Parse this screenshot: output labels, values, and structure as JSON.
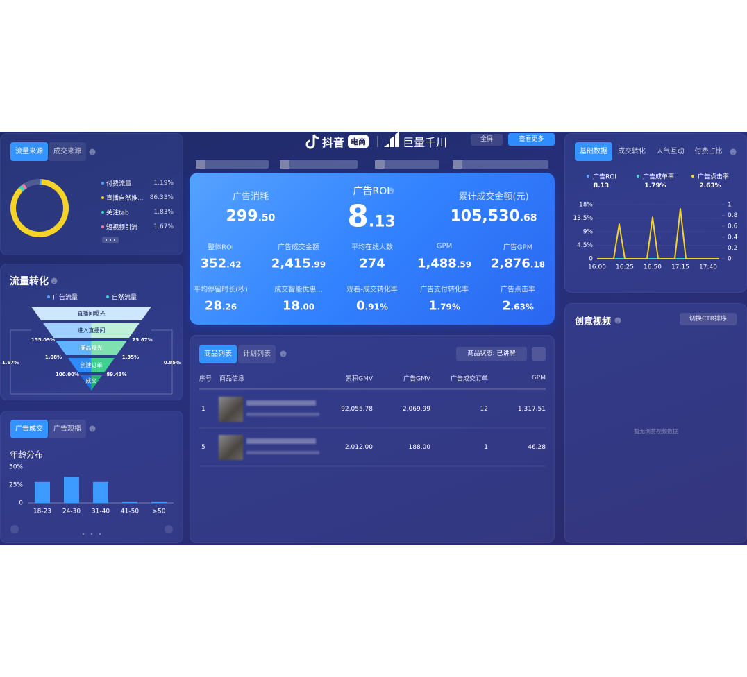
{
  "header": {
    "brand": "抖音",
    "brand_badge": "电商",
    "partner": "巨量千川",
    "fullscreen_button": "全屏",
    "more_button": "查看更多"
  },
  "traffic_source": {
    "tabs": [
      "流量来源",
      "成交来源"
    ],
    "items": [
      {
        "label": "付费流量",
        "value": 1.19,
        "value_label": "1.19%",
        "color": "#4fa3ff"
      },
      {
        "label": "直播自然推...",
        "value": 86.33,
        "value_label": "86.33%",
        "color": "#f5d328"
      },
      {
        "label": "关注tab",
        "value": 1.83,
        "value_label": "1.83%",
        "color": "#3ad6c4"
      },
      {
        "label": "短视频引流",
        "value": 1.67,
        "value_label": "1.67%",
        "color": "#f07da0"
      }
    ]
  },
  "traffic_conversion": {
    "title": "流量转化",
    "legend": [
      "广告流量",
      "自然流量"
    ],
    "stages": [
      "直播间曝光",
      "进入直播间",
      "商品曝光",
      "创建订单",
      "成交"
    ],
    "rates": [
      "155.09%",
      "75.67%",
      "1.08%",
      "1.35%",
      "100.00%",
      "89.43%",
      "1.67%",
      "0.85%"
    ]
  },
  "deal_panel": {
    "tabs": [
      "广告成交",
      "广告观播"
    ]
  },
  "kpis": {
    "primary": [
      {
        "label": "广告消耗",
        "value": "299.50"
      },
      {
        "label": "广告ROI",
        "value": "8.13"
      },
      {
        "label": "累计成交金额(元)",
        "value": "105,530.68"
      }
    ],
    "secondary": [
      {
        "label": "整体ROI",
        "value": "352.42"
      },
      {
        "label": "广告成交金额",
        "value": "2,415.99"
      },
      {
        "label": "平均在线人数",
        "value": "274"
      },
      {
        "label": "GPM",
        "value": "1,488.59"
      },
      {
        "label": "广告GPM",
        "value": "2,876.18"
      },
      {
        "label": "平均停留时长(秒)",
        "value": "28.26"
      },
      {
        "label": "成交智能优惠...",
        "value": "18.00"
      },
      {
        "label": "观看-成交转化率",
        "value": "0.91%"
      },
      {
        "label": "广告支付转化率",
        "value": "1.79%"
      },
      {
        "label": "广告点击率",
        "value": "2.63%"
      }
    ]
  },
  "products": {
    "tabs": [
      "商品列表",
      "计划列表"
    ],
    "filter": "商品状态: 已讲解",
    "columns": [
      "序号",
      "商品信息",
      "累积GMV",
      "广告GMV",
      "广告成交订单",
      "GPM"
    ],
    "rows": [
      [
        "1",
        "92,055.78",
        "2,069.99",
        "12",
        "1,317.51"
      ],
      [
        "5",
        "2,012.00",
        "188.00",
        "1",
        "46.28"
      ]
    ]
  },
  "metric_panel": {
    "tabs": [
      "基础数据",
      "成交转化",
      "人气互动",
      "付费占比"
    ]
  },
  "creative": {
    "title": "创意视频",
    "sort_button": "切换CTR排序",
    "empty": "暂无创意视频数据"
  },
  "chart_data": [
    {
      "type": "bar",
      "title": "年龄分布",
      "categories": [
        "18-23",
        "24-30",
        "31-40",
        "41-50",
        ">50"
      ],
      "values": [
        29,
        36,
        29,
        2,
        2
      ],
      "color": "#3d9bff",
      "ylim": [
        0,
        50
      ],
      "yticks": [
        0,
        {
          "value": 25,
          "label": "25%"
        },
        {
          "value": 50,
          "label": "50%"
        }
      ]
    },
    {
      "type": "line",
      "x": [
        "16:00",
        "16:05",
        "16:10",
        "16:15",
        "16:20",
        "16:25",
        "16:30",
        "16:35",
        "16:40",
        "16:45",
        "16:50",
        "16:55",
        "17:00",
        "17:05",
        "17:10",
        "17:15",
        "17:20",
        "17:25",
        "17:30",
        "17:35",
        "17:40",
        "17:45",
        "17:50"
      ],
      "xticks": [
        "16:00",
        "16:25",
        "16:50",
        "17:15",
        "17:40"
      ],
      "ylim": [
        0,
        18
      ],
      "yticks": [
        0,
        {
          "value": 4.5,
          "label": "4.5%"
        },
        {
          "value": 9,
          "label": "9%"
        },
        {
          "value": 13.5,
          "label": "13.5%"
        },
        {
          "value": 18,
          "label": "18%"
        }
      ],
      "y2lim": [
        0,
        1
      ],
      "y2ticks": [
        0,
        0.2,
        0.4,
        0.6,
        0.8,
        1
      ],
      "series": [
        {
          "name": "广告ROI",
          "latest": "8.13",
          "color": "#4fa3ff",
          "axis": "y2",
          "values": [
            0,
            0,
            0,
            0,
            0,
            0,
            0,
            0,
            0,
            0,
            0,
            0,
            0,
            0,
            0,
            0,
            0,
            0,
            0,
            0,
            0,
            0,
            0
          ]
        },
        {
          "name": "广告成单率",
          "latest": "1.79%",
          "color": "#3ad6c4",
          "values": [
            0,
            0,
            0,
            0,
            0,
            0,
            0,
            0,
            0,
            0,
            0,
            0,
            0,
            0,
            0,
            0,
            0,
            0,
            0,
            0,
            0,
            0,
            0
          ]
        },
        {
          "name": "广告点击率",
          "latest": "2.63%",
          "color": "#f5d328",
          "values": [
            0,
            0,
            0,
            0,
            11.5,
            0,
            0,
            0,
            0,
            0,
            13.8,
            0,
            0,
            0,
            0,
            16.6,
            0,
            0,
            0,
            0,
            0,
            0,
            0
          ]
        }
      ]
    }
  ]
}
